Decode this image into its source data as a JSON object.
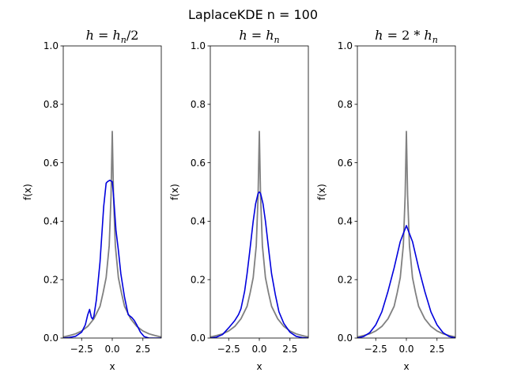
{
  "figure": {
    "suptitle": "LaplaceKDE n = 100"
  },
  "chart_data": [
    {
      "type": "line",
      "title": "h = h_n/2",
      "title_parts": {
        "lhs": "h",
        "eq": " = ",
        "rhs": "h",
        "sub": "n",
        "tail": "/2"
      },
      "xlabel": "x",
      "ylabel": "f(x)",
      "xlim": [
        -4,
        4
      ],
      "ylim": [
        0,
        1.0
      ],
      "xticks": [
        -2.5,
        0.0,
        2.5
      ],
      "xtick_labels": [
        "−2.5",
        "0.0",
        "2.5"
      ],
      "yticks": [
        0,
        0.2,
        0.4,
        0.6,
        0.8,
        1.0
      ],
      "ytick_labels": [
        "0.0",
        "0.2",
        "0.4",
        "0.6",
        "0.8",
        "1.0"
      ],
      "grid": false,
      "legend": "none",
      "series": [
        {
          "color": "#808080",
          "x": [
            -4,
            -3.5,
            -3,
            -2.5,
            -2,
            -1.5,
            -1,
            -0.75,
            -0.5,
            -0.25,
            -0.1,
            0,
            0.1,
            0.25,
            0.5,
            0.75,
            1,
            1.5,
            2,
            2.5,
            3,
            3.5,
            4
          ],
          "y": [
            0.0035,
            0.0085,
            0.0144,
            0.0242,
            0.0399,
            0.0659,
            0.1086,
            0.1547,
            0.2068,
            0.3162,
            0.4884,
            0.7071,
            0.4884,
            0.3162,
            0.2068,
            0.1547,
            0.1086,
            0.0659,
            0.0399,
            0.0242,
            0.0144,
            0.0085,
            0.0035
          ]
        },
        {
          "color": "#0000dd",
          "x": [
            -4,
            -3.5,
            -3,
            -2.5,
            -2.2,
            -2.0,
            -1.85,
            -1.7,
            -1.6,
            -1.5,
            -1.3,
            -1.0,
            -0.7,
            -0.5,
            -0.4,
            -0.2,
            0.0,
            0.1,
            0.3,
            0.5,
            0.7,
            1.0,
            1.3,
            1.6,
            1.8,
            2.0,
            2.3,
            2.6,
            3.0,
            3.5,
            4.0
          ],
          "y": [
            0.0,
            0.002,
            0.006,
            0.02,
            0.045,
            0.08,
            0.098,
            0.07,
            0.065,
            0.075,
            0.13,
            0.26,
            0.45,
            0.53,
            0.535,
            0.54,
            0.535,
            0.49,
            0.37,
            0.3,
            0.22,
            0.14,
            0.08,
            0.07,
            0.06,
            0.045,
            0.02,
            0.005,
            0.0,
            0.0,
            0.0
          ]
        }
      ]
    },
    {
      "type": "line",
      "title": "h = h_n",
      "title_parts": {
        "lhs": "h",
        "eq": " = ",
        "rhs": "h",
        "sub": "n",
        "tail": ""
      },
      "xlabel": "x",
      "ylabel": "f(x)",
      "xlim": [
        -4,
        4
      ],
      "ylim": [
        0,
        1.0
      ],
      "xticks": [
        -2.5,
        0.0,
        2.5
      ],
      "xtick_labels": [
        "−2.5",
        "0.0",
        "2.5"
      ],
      "yticks": [
        0,
        0.2,
        0.4,
        0.6,
        0.8,
        1.0
      ],
      "ytick_labels": [
        "0.0",
        "0.2",
        "0.4",
        "0.6",
        "0.8",
        "1.0"
      ],
      "grid": false,
      "legend": "none",
      "series": [
        {
          "color": "#808080",
          "x": [
            -4,
            -3.5,
            -3,
            -2.5,
            -2,
            -1.5,
            -1,
            -0.75,
            -0.5,
            -0.25,
            -0.1,
            0,
            0.1,
            0.25,
            0.5,
            0.75,
            1,
            1.5,
            2,
            2.5,
            3,
            3.5,
            4
          ],
          "y": [
            0.0035,
            0.0085,
            0.0144,
            0.0242,
            0.0399,
            0.0659,
            0.1086,
            0.1547,
            0.2068,
            0.3162,
            0.4884,
            0.7071,
            0.4884,
            0.3162,
            0.2068,
            0.1547,
            0.1086,
            0.0659,
            0.0399,
            0.0242,
            0.0144,
            0.0085,
            0.0035
          ]
        },
        {
          "color": "#0000dd",
          "x": [
            -4,
            -3.5,
            -3,
            -2.5,
            -2,
            -1.7,
            -1.5,
            -1.2,
            -1,
            -0.8,
            -0.5,
            -0.3,
            -0.1,
            0,
            0.1,
            0.3,
            0.5,
            0.8,
            1,
            1.3,
            1.6,
            2,
            2.5,
            3,
            3.5,
            4
          ],
          "y": [
            0.0,
            0.003,
            0.012,
            0.035,
            0.06,
            0.08,
            0.1,
            0.16,
            0.22,
            0.29,
            0.4,
            0.46,
            0.495,
            0.5,
            0.495,
            0.46,
            0.4,
            0.29,
            0.22,
            0.15,
            0.09,
            0.05,
            0.02,
            0.006,
            0.0015,
            0.0
          ]
        }
      ]
    },
    {
      "type": "line",
      "title": "h = 2 * h_n",
      "title_parts": {
        "lhs": "h",
        "eq": " = 2 * ",
        "rhs": "h",
        "sub": "n",
        "tail": ""
      },
      "xlabel": "x",
      "ylabel": "f(x)",
      "xlim": [
        -4,
        4
      ],
      "ylim": [
        0,
        1.0
      ],
      "xticks": [
        -2.5,
        0.0,
        2.5
      ],
      "xtick_labels": [
        "−2.5",
        "0.0",
        "2.5"
      ],
      "yticks": [
        0,
        0.2,
        0.4,
        0.6,
        0.8,
        1.0
      ],
      "ytick_labels": [
        "0.0",
        "0.2",
        "0.4",
        "0.6",
        "0.8",
        "1.0"
      ],
      "grid": false,
      "legend": "none",
      "series": [
        {
          "color": "#808080",
          "x": [
            -4,
            -3.5,
            -3,
            -2.5,
            -2,
            -1.5,
            -1,
            -0.75,
            -0.5,
            -0.25,
            -0.1,
            0,
            0.1,
            0.25,
            0.5,
            0.75,
            1,
            1.5,
            2,
            2.5,
            3,
            3.5,
            4
          ],
          "y": [
            0.0035,
            0.0085,
            0.0144,
            0.0242,
            0.0399,
            0.0659,
            0.1086,
            0.1547,
            0.2068,
            0.3162,
            0.4884,
            0.7071,
            0.4884,
            0.3162,
            0.2068,
            0.1547,
            0.1086,
            0.0659,
            0.0399,
            0.0242,
            0.0144,
            0.0085,
            0.0035
          ]
        },
        {
          "color": "#0000dd",
          "x": [
            -4,
            -3.5,
            -3,
            -2.5,
            -2,
            -1.5,
            -1,
            -0.5,
            0,
            0.5,
            1,
            1.5,
            2,
            2.5,
            3,
            3.5,
            4
          ],
          "y": [
            0.0,
            0.005,
            0.018,
            0.045,
            0.09,
            0.16,
            0.24,
            0.33,
            0.385,
            0.33,
            0.24,
            0.16,
            0.09,
            0.045,
            0.018,
            0.005,
            0.0
          ]
        }
      ]
    }
  ]
}
